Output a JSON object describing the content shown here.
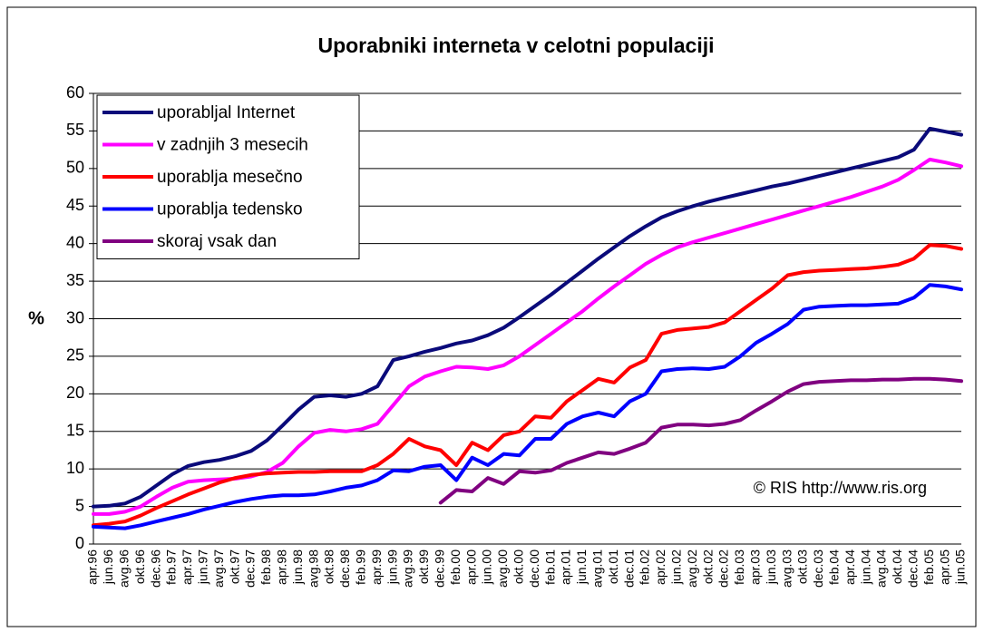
{
  "chart_data": {
    "type": "line",
    "title": "Uporabniki interneta v celotni populaciji",
    "y_label": "%",
    "annotation": "© RIS http://www.ris.org",
    "categories": [
      "apr.96",
      "jun.96",
      "avg.96",
      "okt.96",
      "dec.96",
      "feb.97",
      "apr.97",
      "jun.97",
      "avg.97",
      "okt.97",
      "dec.97",
      "feb.98",
      "apr.98",
      "jun.98",
      "avg.98",
      "okt.98",
      "dec.98",
      "feb.99",
      "apr.99",
      "jun.99",
      "avg.99",
      "okt.99",
      "dec.99",
      "feb.00",
      "apr.00",
      "jun.00",
      "avg.00",
      "okt.00",
      "dec.00",
      "feb.01",
      "apr.01",
      "jun.01",
      "avg.01",
      "okt.01",
      "dec.01",
      "feb.02",
      "apr.02",
      "jun.02",
      "avg.02",
      "okt.02",
      "dec.02",
      "feb.03",
      "apr.03",
      "jun.03",
      "avg.03",
      "okt.03",
      "dec.03",
      "feb.04",
      "apr.04",
      "jun.04",
      "avg.04",
      "okt.04",
      "dec.04",
      "feb.05",
      "apr.05",
      "jun.05"
    ],
    "ylim": [
      0,
      60
    ],
    "yticks": [
      0,
      5,
      10,
      15,
      20,
      25,
      30,
      35,
      40,
      45,
      50,
      55,
      60
    ],
    "grid": true,
    "legend": "top-left",
    "series": [
      {
        "name": "uporabljal Internet",
        "color": "#0a0a7a",
        "values": [
          5.0,
          5.1,
          5.4,
          6.3,
          7.8,
          9.3,
          10.4,
          10.9,
          11.2,
          11.7,
          12.4,
          13.8,
          15.8,
          17.9,
          19.6,
          19.8,
          19.6,
          20.0,
          21.0,
          24.5,
          25.0,
          25.6,
          26.1,
          26.7,
          27.1,
          27.8,
          28.8,
          30.2,
          31.7,
          33.2,
          34.8,
          36.4,
          38.0,
          39.5,
          41.0,
          42.3,
          43.5,
          44.3,
          45.0,
          45.6,
          46.1,
          46.6,
          47.1,
          47.6,
          48.0,
          48.5,
          49.0,
          49.5,
          50.0,
          50.5,
          51.0,
          51.5,
          52.5,
          55.3,
          54.9,
          54.5
        ]
      },
      {
        "name": "v zadnjih 3 mesecih",
        "color": "#ff00ff",
        "values": [
          4.0,
          4.0,
          4.3,
          5.0,
          6.3,
          7.5,
          8.3,
          8.5,
          8.6,
          8.7,
          9.0,
          9.6,
          10.8,
          13.0,
          14.8,
          15.2,
          15.0,
          15.3,
          16.0,
          18.5,
          21.0,
          22.3,
          23.0,
          23.6,
          23.5,
          23.3,
          23.8,
          25.0,
          26.5,
          28.0,
          29.5,
          31.0,
          32.7,
          34.3,
          35.8,
          37.3,
          38.5,
          39.5,
          40.2,
          40.8,
          41.4,
          42.0,
          42.6,
          43.2,
          43.8,
          44.4,
          45.0,
          45.6,
          46.2,
          46.9,
          47.6,
          48.5,
          49.8,
          51.2,
          50.8,
          50.3
        ]
      },
      {
        "name": "uporablja mesečno",
        "color": "#ff0000",
        "values": [
          2.5,
          2.7,
          3.0,
          3.8,
          4.8,
          5.7,
          6.6,
          7.4,
          8.2,
          8.8,
          9.2,
          9.4,
          9.5,
          9.6,
          9.6,
          9.7,
          9.7,
          9.7,
          10.5,
          12.0,
          14.0,
          13.0,
          12.5,
          10.5,
          13.5,
          12.5,
          14.5,
          15.0,
          17.0,
          16.8,
          19.0,
          20.5,
          22.0,
          21.5,
          23.5,
          24.5,
          28.0,
          28.5,
          28.7,
          28.9,
          29.5,
          31.0,
          32.5,
          34.0,
          35.8,
          36.2,
          36.4,
          36.5,
          36.6,
          36.7,
          36.9,
          37.2,
          38.0,
          39.8,
          39.7,
          39.3
        ]
      },
      {
        "name": "uporablja tedensko",
        "color": "#0000ff",
        "values": [
          2.3,
          2.2,
          2.1,
          2.5,
          3.0,
          3.5,
          4.0,
          4.6,
          5.1,
          5.6,
          6.0,
          6.3,
          6.5,
          6.5,
          6.6,
          7.0,
          7.5,
          7.8,
          8.5,
          9.8,
          9.7,
          10.3,
          10.5,
          8.5,
          11.5,
          10.5,
          12.0,
          11.8,
          14.0,
          14.0,
          16.0,
          17.0,
          17.5,
          17.0,
          19.0,
          20.0,
          23.0,
          23.3,
          23.4,
          23.3,
          23.6,
          25.0,
          26.8,
          28.0,
          29.3,
          31.2,
          31.6,
          31.7,
          31.8,
          31.8,
          31.9,
          32.0,
          32.8,
          34.5,
          34.3,
          33.9
        ]
      },
      {
        "name": "skoraj vsak dan",
        "color": "#800080",
        "values": [
          null,
          null,
          null,
          null,
          null,
          null,
          null,
          null,
          null,
          null,
          null,
          null,
          null,
          null,
          null,
          null,
          null,
          null,
          null,
          null,
          null,
          null,
          5.5,
          7.2,
          7.0,
          8.8,
          8.0,
          9.7,
          9.5,
          9.8,
          10.8,
          11.5,
          12.2,
          12.0,
          12.7,
          13.5,
          15.5,
          15.9,
          15.9,
          15.8,
          16.0,
          16.5,
          17.8,
          19.0,
          20.3,
          21.3,
          21.6,
          21.7,
          21.8,
          21.8,
          21.9,
          21.9,
          22.0,
          22.0,
          21.9,
          21.7
        ]
      }
    ]
  }
}
